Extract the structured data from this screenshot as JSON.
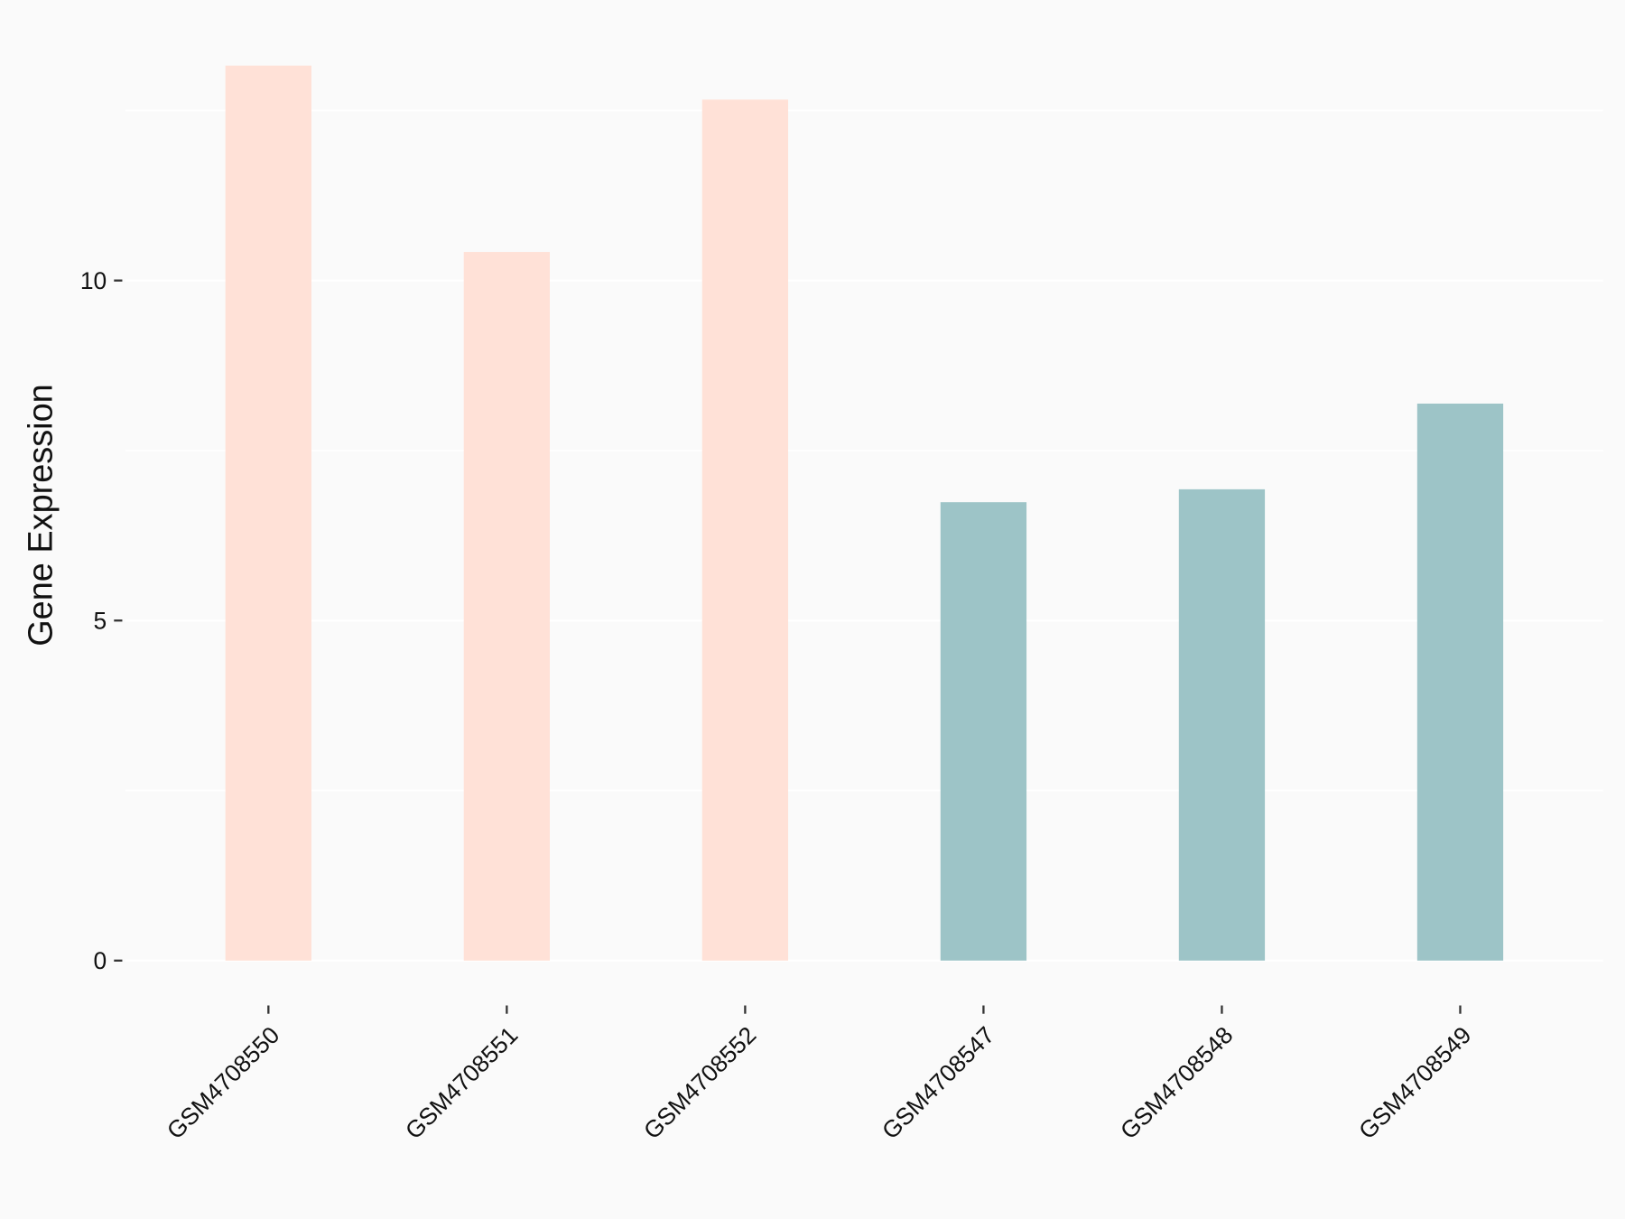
{
  "chart_data": {
    "type": "bar",
    "y_label": "Gene Expression",
    "categories": [
      "GSM4708550",
      "GSM4708551",
      "GSM4708552",
      "GSM4708547",
      "GSM4708548",
      "GSM4708549"
    ],
    "values": [
      13.16,
      10.42,
      12.66,
      6.74,
      6.93,
      8.19
    ],
    "colors": [
      "#ffe1d7",
      "#ffe1d7",
      "#ffe1d7",
      "#9dc4c7",
      "#9dc4c7",
      "#9dc4c7"
    ],
    "ylim": [
      -0.66,
      13.82
    ],
    "yticks": [
      0,
      5,
      10
    ],
    "minor_yticks": [
      2.5,
      7.5,
      12.5
    ],
    "grid": true
  }
}
